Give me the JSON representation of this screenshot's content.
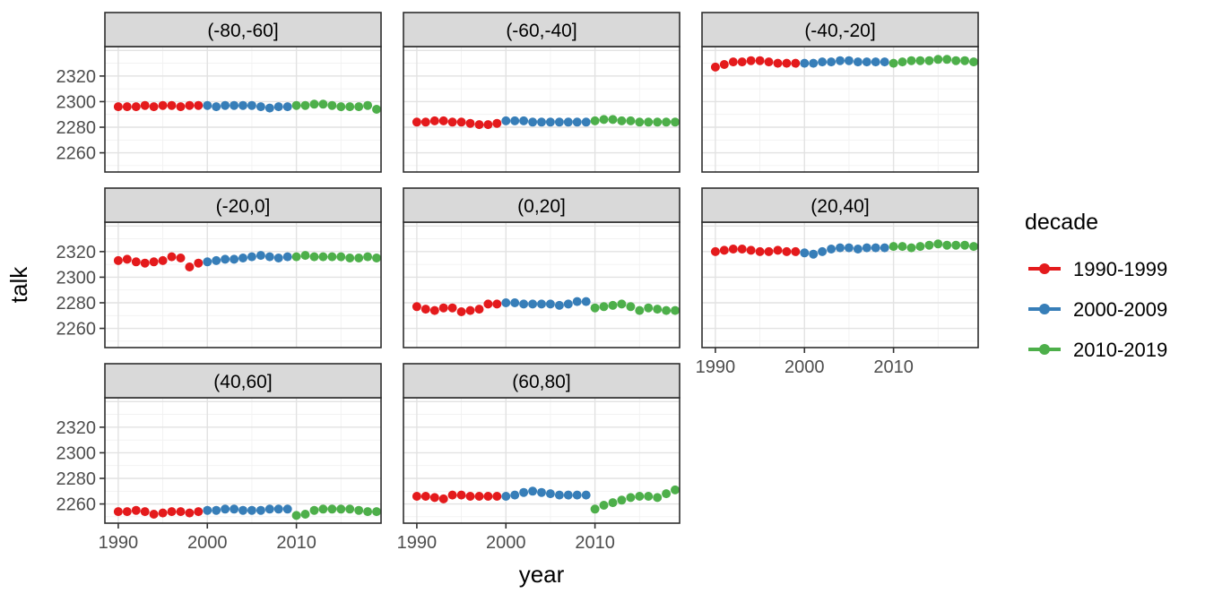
{
  "chart_data": {
    "type": "scatter",
    "title": "",
    "xlabel": "year",
    "ylabel": "talk",
    "x_ticks": [
      "1990",
      "2000",
      "2010"
    ],
    "y_ticks": [
      "2320",
      "2300",
      "2280",
      "2260"
    ],
    "x_tick_values": [
      1990,
      2000,
      2010
    ],
    "y_tick_values": [
      2320,
      2300,
      2280,
      2260
    ],
    "x_minor_values": [
      1995,
      2005,
      2015
    ],
    "y_major_grid_values": [
      2260,
      2280,
      2300,
      2320,
      2340
    ],
    "y_minor_values": [
      2250,
      2270,
      2290,
      2310,
      2330
    ],
    "x_range": [
      1988.5,
      2019.5
    ],
    "y_range": [
      2245,
      2343
    ],
    "grid": true,
    "legend": {
      "title": "decade",
      "position": "right",
      "entries": [
        {
          "label": "1990-1999",
          "color": "#E41A1C"
        },
        {
          "label": "2000-2009",
          "color": "#377EB8"
        },
        {
          "label": "2010-2019",
          "color": "#4DAF4A"
        }
      ]
    },
    "series_years": {
      "1990-1999": [
        1990,
        1991,
        1992,
        1993,
        1994,
        1995,
        1996,
        1997,
        1998,
        1999
      ],
      "2000-2009": [
        2000,
        2001,
        2002,
        2003,
        2004,
        2005,
        2006,
        2007,
        2008,
        2009
      ],
      "2010-2019": [
        2010,
        2011,
        2012,
        2013,
        2014,
        2015,
        2016,
        2017,
        2018,
        2019
      ]
    },
    "facets": [
      {
        "label": "(-80,-60]",
        "series": {
          "1990-1999": [
            2296,
            2296,
            2296,
            2297,
            2296,
            2297,
            2297,
            2296,
            2297,
            2297
          ],
          "2000-2009": [
            2297,
            2296,
            2297,
            2297,
            2297,
            2297,
            2296,
            2295,
            2296,
            2296
          ],
          "2010-2019": [
            2297,
            2297,
            2298,
            2298,
            2297,
            2296,
            2296,
            2296,
            2297,
            2294
          ]
        }
      },
      {
        "label": "(-60,-40]",
        "series": {
          "1990-1999": [
            2284,
            2284,
            2285,
            2285,
            2284,
            2284,
            2283,
            2282,
            2282,
            2283
          ],
          "2000-2009": [
            2285,
            2285,
            2285,
            2284,
            2284,
            2284,
            2284,
            2284,
            2284,
            2284
          ],
          "2010-2019": [
            2285,
            2286,
            2286,
            2285,
            2285,
            2284,
            2284,
            2284,
            2284,
            2284
          ]
        }
      },
      {
        "label": "(-40,-20]",
        "series": {
          "1990-1999": [
            2327,
            2329,
            2331,
            2331,
            2332,
            2332,
            2331,
            2330,
            2330,
            2330
          ],
          "2000-2009": [
            2330,
            2330,
            2331,
            2331,
            2332,
            2332,
            2331,
            2331,
            2331,
            2331
          ],
          "2010-2019": [
            2330,
            2331,
            2332,
            2332,
            2332,
            2333,
            2333,
            2332,
            2332,
            2331
          ]
        }
      },
      {
        "label": "(-20,0]",
        "series": {
          "1990-1999": [
            2313,
            2314,
            2312,
            2311,
            2312,
            2313,
            2316,
            2315,
            2308,
            2311
          ],
          "2000-2009": [
            2312,
            2313,
            2314,
            2314,
            2315,
            2316,
            2317,
            2316,
            2315,
            2316
          ],
          "2010-2019": [
            2316,
            2317,
            2316,
            2316,
            2316,
            2316,
            2315,
            2315,
            2316,
            2315
          ]
        }
      },
      {
        "label": "(0,20]",
        "series": {
          "1990-1999": [
            2277,
            2275,
            2274,
            2276,
            2276,
            2273,
            2274,
            2275,
            2279,
            2279
          ],
          "2000-2009": [
            2280,
            2280,
            2279,
            2279,
            2279,
            2279,
            2278,
            2279,
            2281,
            2281
          ],
          "2010-2019": [
            2276,
            2277,
            2278,
            2279,
            2277,
            2274,
            2276,
            2275,
            2274,
            2274
          ]
        }
      },
      {
        "label": "(20,40]",
        "series": {
          "1990-1999": [
            2320,
            2321,
            2322,
            2322,
            2321,
            2320,
            2320,
            2321,
            2320,
            2320
          ],
          "2000-2009": [
            2319,
            2318,
            2320,
            2322,
            2323,
            2323,
            2322,
            2323,
            2323,
            2323
          ],
          "2010-2019": [
            2324,
            2324,
            2323,
            2324,
            2325,
            2326,
            2325,
            2325,
            2325,
            2324
          ]
        }
      },
      {
        "label": "(40,60]",
        "series": {
          "1990-1999": [
            2254,
            2254,
            2255,
            2254,
            2252,
            2253,
            2254,
            2254,
            2253,
            2254
          ],
          "2000-2009": [
            2255,
            2255,
            2256,
            2256,
            2255,
            2255,
            2255,
            2256,
            2256,
            2256
          ],
          "2010-2019": [
            2251,
            2252,
            2255,
            2256,
            2256,
            2256,
            2256,
            2255,
            2254,
            2254
          ]
        }
      },
      {
        "label": "(60,80]",
        "series": {
          "1990-1999": [
            2266,
            2266,
            2265,
            2264,
            2267,
            2267,
            2266,
            2266,
            2266,
            2266
          ],
          "2000-2009": [
            2266,
            2267,
            2269,
            2270,
            2269,
            2268,
            2267,
            2267,
            2267,
            2267
          ],
          "2010-2019": [
            2256,
            2259,
            2261,
            2263,
            2265,
            2266,
            2266,
            2265,
            2268,
            2271
          ]
        }
      }
    ],
    "style_colors": {
      "strip_background": "#D9D9D9",
      "panel_background": "#FFFFFF",
      "panel_border": "#2E2E2E",
      "grid_major": "#E2E2E2",
      "grid_minor": "#F1F1F1",
      "tick_label": "#4D4D4D",
      "tick_mark": "#333333",
      "text": "#000000"
    }
  }
}
